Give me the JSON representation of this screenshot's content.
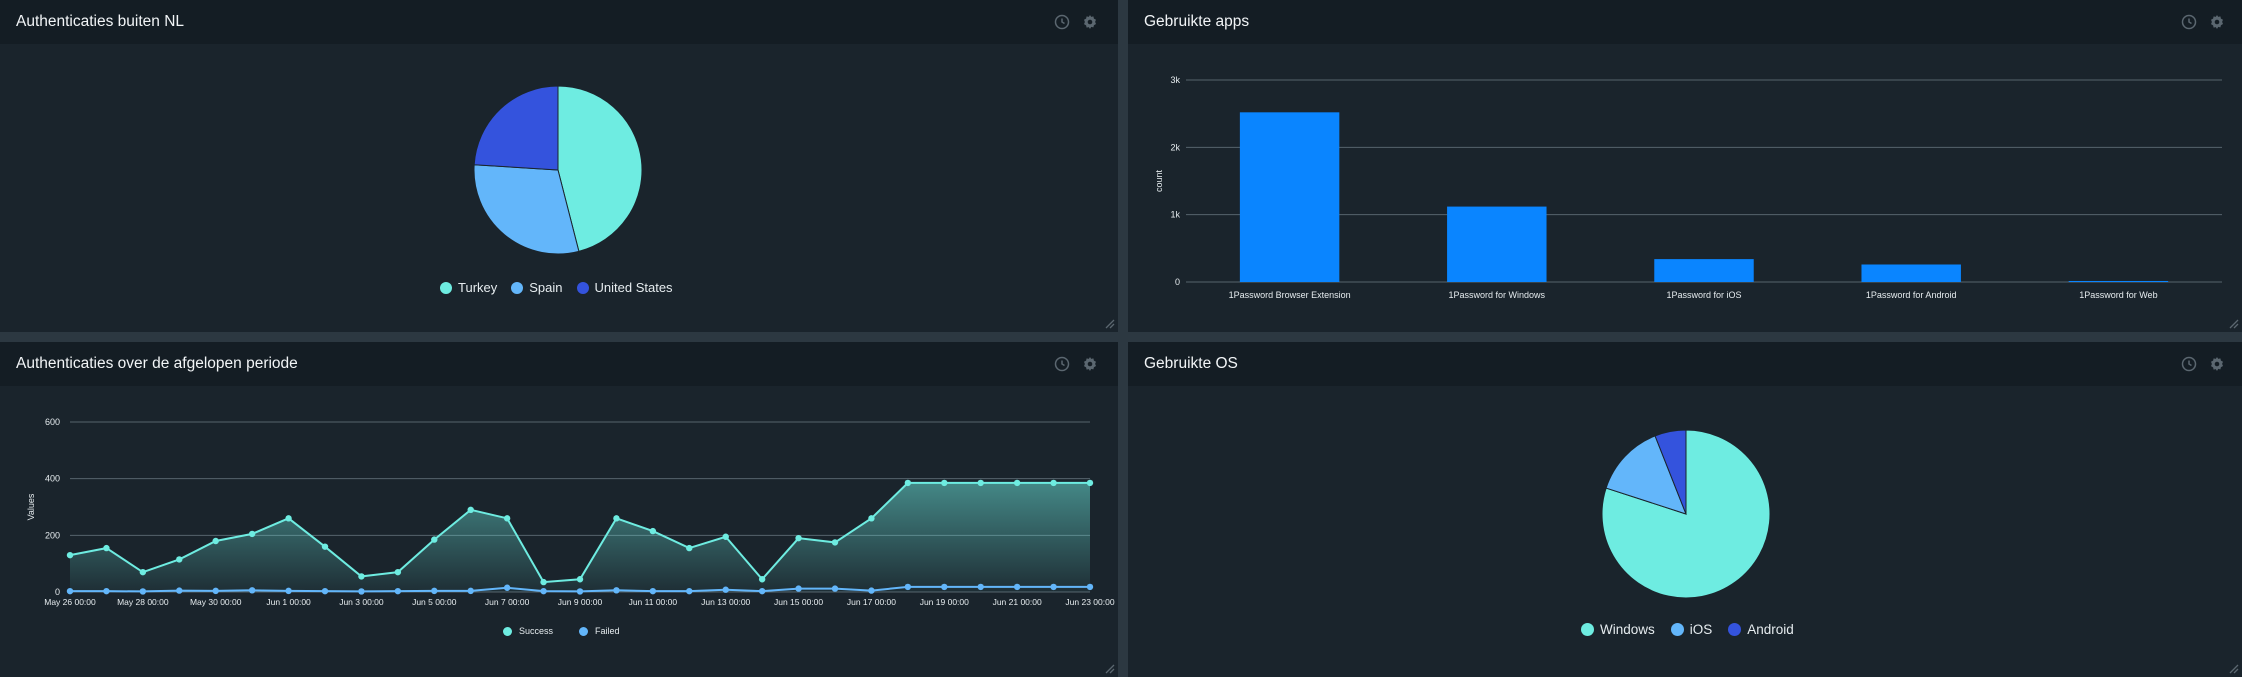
{
  "panels": {
    "auth_outside": {
      "title": "Authenticaties buiten NL"
    },
    "apps": {
      "title": "Gebruikte apps"
    },
    "auth_period": {
      "title": "Authenticaties over de afgelopen periode"
    },
    "os": {
      "title": "Gebruikte OS"
    }
  },
  "icons": {
    "history": "clock-icon",
    "settings": "gear-icon",
    "resize": "resize-grip-icon"
  },
  "colors": {
    "panel_bg": "#1a242c",
    "header_bg": "#141d24",
    "page_bg": "#2c3841",
    "cyan": "#6eece1",
    "light_blue": "#63b6fa",
    "blue": "#3453dd",
    "bar_blue": "#0a85ff"
  },
  "chart_data": [
    {
      "id": "auth_outside",
      "type": "pie",
      "labels": [
        "Turkey",
        "Spain",
        "United States"
      ],
      "values": [
        46,
        30,
        24
      ],
      "colors": [
        "#6eece1",
        "#63b6fa",
        "#3453dd"
      ],
      "legend": "bottom"
    },
    {
      "id": "apps",
      "type": "bar",
      "categories": [
        "1Password Browser Extension",
        "1Password for Windows",
        "1Password for iOS",
        "1Password for Android",
        "1Password for Web"
      ],
      "values": [
        2520,
        1120,
        340,
        260,
        15
      ],
      "ylabel": "count",
      "ylim": [
        0,
        3000
      ],
      "yticks": [
        "0",
        "1k",
        "2k",
        "3k"
      ],
      "ytick_values": [
        0,
        1000,
        2000,
        3000
      ],
      "grid": true,
      "color": "#0a85ff"
    },
    {
      "id": "auth_period",
      "type": "area",
      "x": [
        "May 26",
        "May 27",
        "May 28",
        "May 29",
        "May 30",
        "May 31",
        "Jun 1",
        "Jun 2",
        "Jun 3",
        "Jun 4",
        "Jun 5",
        "Jun 6",
        "Jun 7",
        "Jun 8",
        "Jun 9",
        "Jun 10",
        "Jun 11",
        "Jun 12",
        "Jun 13",
        "Jun 14",
        "Jun 15",
        "Jun 16",
        "Jun 17",
        "Jun 18",
        "Jun 19",
        "Jun 20",
        "Jun 21",
        "Jun 22",
        "Jun 23"
      ],
      "xticks": [
        "May 26 00:00",
        "May 28 00:00",
        "May 30 00:00",
        "Jun 1 00:00",
        "Jun 3 00:00",
        "Jun 5 00:00",
        "Jun 7 00:00",
        "Jun 9 00:00",
        "Jun 11 00:00",
        "Jun 13 00:00",
        "Jun 15 00:00",
        "Jun 17 00:00",
        "Jun 19 00:00",
        "Jun 21 00:00",
        "Jun 23 00:00"
      ],
      "ylabel": "Values",
      "ylim": [
        0,
        600
      ],
      "yticks": [
        "0",
        "200",
        "400",
        "600"
      ],
      "ytick_values": [
        0,
        200,
        400,
        600
      ],
      "grid": true,
      "legend": "bottom",
      "series": [
        {
          "name": "Success",
          "color": "#6eece1",
          "values": [
            130,
            155,
            70,
            115,
            180,
            205,
            260,
            160,
            55,
            70,
            185,
            290,
            260,
            35,
            45,
            260,
            215,
            155,
            195,
            45,
            190,
            175,
            260,
            385,
            385,
            385,
            385,
            385,
            385
          ]
        },
        {
          "name": "Failed",
          "color": "#63b6fa",
          "values": [
            3,
            3,
            2,
            5,
            4,
            6,
            4,
            3,
            2,
            3,
            4,
            4,
            15,
            3,
            2,
            6,
            3,
            3,
            8,
            3,
            12,
            12,
            5,
            18,
            18,
            18,
            18,
            18,
            18
          ]
        }
      ]
    },
    {
      "id": "os",
      "type": "pie",
      "labels": [
        "Windows",
        "iOS",
        "Android"
      ],
      "values": [
        80,
        14,
        6
      ],
      "colors": [
        "#6eece1",
        "#63b6fa",
        "#3453dd"
      ],
      "legend": "bottom"
    }
  ]
}
